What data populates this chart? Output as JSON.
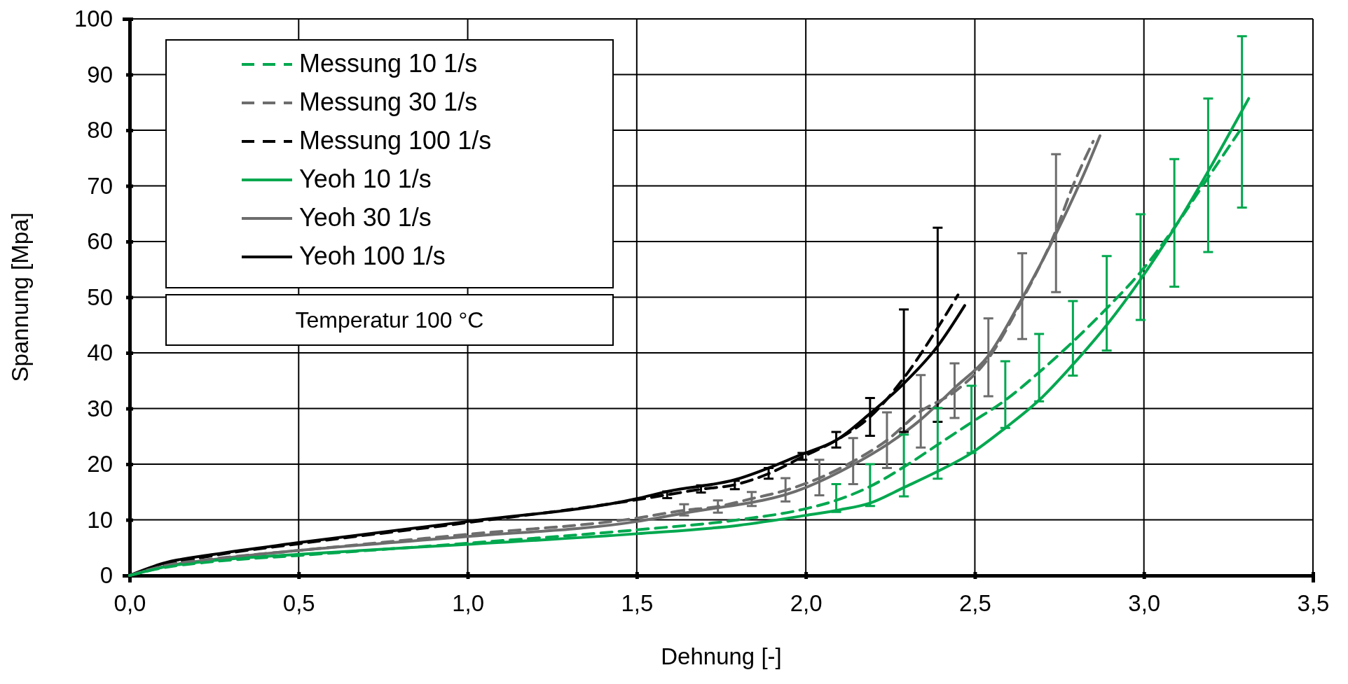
{
  "chart_data": {
    "type": "line",
    "xlabel": "Dehnung  [-]",
    "ylabel": "Spannung  [Mpa]",
    "xlim": [
      0,
      3.5
    ],
    "xticks": [
      {
        "value": 0,
        "label": "0,0"
      },
      {
        "value": 0.5,
        "label": "0,5"
      },
      {
        "value": 1,
        "label": "1,0"
      },
      {
        "value": 1.5,
        "label": "1,5"
      },
      {
        "value": 2,
        "label": "2,0"
      },
      {
        "value": 2.5,
        "label": "2,5"
      },
      {
        "value": 3,
        "label": "3,0"
      },
      {
        "value": 3.5,
        "label": "3,5"
      }
    ],
    "ylim": [
      0,
      100
    ],
    "yticks": [
      0,
      10,
      20,
      30,
      40,
      50,
      60,
      70,
      80,
      90,
      100
    ],
    "grid": true,
    "legend": "top left",
    "annotations": [
      "Temperatur 100 °C"
    ],
    "series": [
      {
        "name": "Messung 10 1/s",
        "color": "#00a84f",
        "line_style": "dashed",
        "x": [
          0,
          0.1,
          0.25,
          0.5,
          1.0,
          1.5,
          1.8,
          2.0,
          2.09,
          2.19,
          2.29,
          2.39,
          2.49,
          2.59,
          2.69,
          2.79,
          2.89,
          2.99,
          3.09,
          3.19,
          3.29
        ],
        "values": [
          0,
          1.4,
          2.5,
          3.6,
          5.8,
          8.2,
          10,
          12,
          13.5,
          16,
          19.5,
          23.5,
          27.5,
          31.5,
          36.5,
          42,
          48,
          54.5,
          62.5,
          71.5,
          80.5
        ],
        "errors": [
          null,
          null,
          null,
          null,
          null,
          null,
          null,
          null,
          [
            11.4,
            16.4
          ],
          [
            12.5,
            20
          ],
          [
            14.2,
            25.3
          ],
          [
            17.4,
            30.1
          ],
          [
            22,
            34.1
          ],
          [
            26.5,
            38.5
          ],
          [
            31.3,
            43.4
          ],
          [
            35.9,
            49.3
          ],
          [
            40.4,
            57.4
          ],
          [
            45.9,
            64.9
          ],
          [
            51.9,
            74.8
          ],
          [
            58.1,
            85.7
          ],
          [
            66.1,
            96.9
          ]
        ]
      },
      {
        "name": "Messung 30 1/s",
        "color": "#6d6d6d",
        "line_style": "dashed",
        "x": [
          0,
          0.1,
          0.25,
          0.5,
          1.0,
          1.5,
          1.64,
          1.74,
          1.84,
          1.94,
          2.04,
          2.14,
          2.24,
          2.34,
          2.44,
          2.54,
          2.64,
          2.74,
          2.79,
          2.85
        ],
        "values": [
          0,
          1.7,
          3,
          4.5,
          7.4,
          10.3,
          11.7,
          12.4,
          13.8,
          15.3,
          17.5,
          20.5,
          24.3,
          29.5,
          33,
          39,
          49.5,
          62,
          70,
          78
        ],
        "errors": [
          null,
          null,
          null,
          null,
          null,
          null,
          [
            10.8,
            12.8
          ],
          [
            11.3,
            13.5
          ],
          [
            12.5,
            15
          ],
          [
            13.3,
            17.5
          ],
          [
            14.4,
            20.8
          ],
          [
            16.4,
            24.7
          ],
          [
            19.3,
            29.3
          ],
          [
            23,
            36
          ],
          [
            28.3,
            38.1
          ],
          [
            32.2,
            46.2
          ],
          [
            42.5,
            57.9
          ],
          [
            50.9,
            75.7
          ],
          null,
          null
        ]
      },
      {
        "name": "Messung 100 1/s",
        "color": "#000000",
        "line_style": "dashed",
        "x": [
          0,
          0.1,
          0.25,
          0.5,
          1.0,
          1.5,
          1.59,
          1.69,
          1.79,
          1.89,
          1.99,
          2.09,
          2.19,
          2.29,
          2.39,
          2.45
        ],
        "values": [
          0,
          1.8,
          3.6,
          5.7,
          9.5,
          13.6,
          14.5,
          15.5,
          16.3,
          18.3,
          21.3,
          24.3,
          28.5,
          35.5,
          44.5,
          50.4
        ],
        "errors": [
          null,
          null,
          null,
          null,
          null,
          null,
          [
            13.9,
            15.1
          ],
          [
            14.9,
            16.2
          ],
          [
            15.5,
            17
          ],
          [
            17.4,
            19.3
          ],
          [
            20.8,
            22
          ],
          [
            23,
            25.8
          ],
          [
            25.1,
            31.9
          ],
          [
            25.8,
            47.8
          ],
          [
            27.6,
            62.5
          ],
          null
        ]
      },
      {
        "name": "Yeoh 10 1/s",
        "color": "#00a84f",
        "line_style": "solid",
        "x": [
          0,
          0.1,
          0.25,
          0.5,
          1.0,
          1.5,
          1.8,
          2.0,
          2.1,
          2.19,
          2.29,
          2.39,
          2.49,
          2.59,
          2.69,
          2.79,
          2.89,
          2.99,
          3.09,
          3.19,
          3.29,
          3.31
        ],
        "values": [
          0,
          1.5,
          2.7,
          3.8,
          5.6,
          7.5,
          9,
          10.8,
          11.8,
          13,
          15.8,
          18.7,
          22,
          26.5,
          31.5,
          37.9,
          45,
          53.2,
          62.4,
          72.6,
          83.5,
          85.7
        ]
      },
      {
        "name": "Yeoh 30 1/s",
        "color": "#6d6d6d",
        "line_style": "solid",
        "x": [
          0,
          0.1,
          0.25,
          0.5,
          1.0,
          1.5,
          1.64,
          2.0,
          2.14,
          2.24,
          2.34,
          2.44,
          2.54,
          2.64,
          2.74,
          2.84,
          2.87
        ],
        "values": [
          0,
          1.6,
          2.9,
          4.5,
          7,
          9.7,
          11.2,
          15.8,
          19.9,
          23.5,
          28,
          33.7,
          39.5,
          49.8,
          61.4,
          74.6,
          79
        ]
      },
      {
        "name": "Yeoh 100 1/s",
        "color": "#000000",
        "line_style": "solid",
        "x": [
          0,
          0.1,
          0.25,
          0.5,
          1.0,
          1.5,
          1.59,
          1.79,
          1.99,
          2.09,
          2.19,
          2.29,
          2.39,
          2.47
        ],
        "values": [
          0,
          2.2,
          3.8,
          5.9,
          9.7,
          13.8,
          15.1,
          17.2,
          21.8,
          24.3,
          29.1,
          34.5,
          41.2,
          48.5
        ]
      }
    ]
  }
}
